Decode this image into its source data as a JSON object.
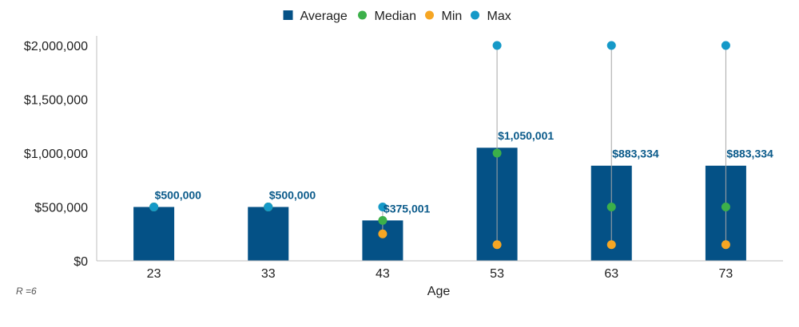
{
  "chart_data": {
    "type": "bar",
    "title": "",
    "xlabel": "Age",
    "ylabel": "",
    "categories": [
      "23",
      "33",
      "43",
      "53",
      "63",
      "73"
    ],
    "ylim": [
      0,
      2000000
    ],
    "yticks": [
      0,
      500000,
      1000000,
      1500000,
      2000000
    ],
    "ytick_labels": [
      "$0",
      "$500,000",
      "$1,000,000",
      "$1,500,000",
      "$2,000,000"
    ],
    "legend_position": "top-center",
    "grid": false,
    "series": [
      {
        "name": "Average",
        "kind": "bar",
        "color": "#045186",
        "values": [
          500000,
          500000,
          375001,
          1050001,
          883334,
          883334
        ],
        "labels": [
          "$500,000",
          "$500,000",
          "$375,001",
          "$1,050,001",
          "$883,334",
          "$883,334"
        ]
      },
      {
        "name": "Median",
        "kind": "point",
        "color": "#3cb04a",
        "values": [
          500000,
          500000,
          375000,
          1000000,
          500000,
          500000
        ]
      },
      {
        "name": "Min",
        "kind": "point",
        "color": "#f6a623",
        "values": [
          500000,
          500000,
          250000,
          150000,
          150000,
          150000
        ]
      },
      {
        "name": "Max",
        "kind": "point",
        "color": "#1599c8",
        "values": [
          500000,
          500000,
          500000,
          2000000,
          2000000,
          2000000
        ]
      }
    ],
    "footnote": "R =6"
  }
}
